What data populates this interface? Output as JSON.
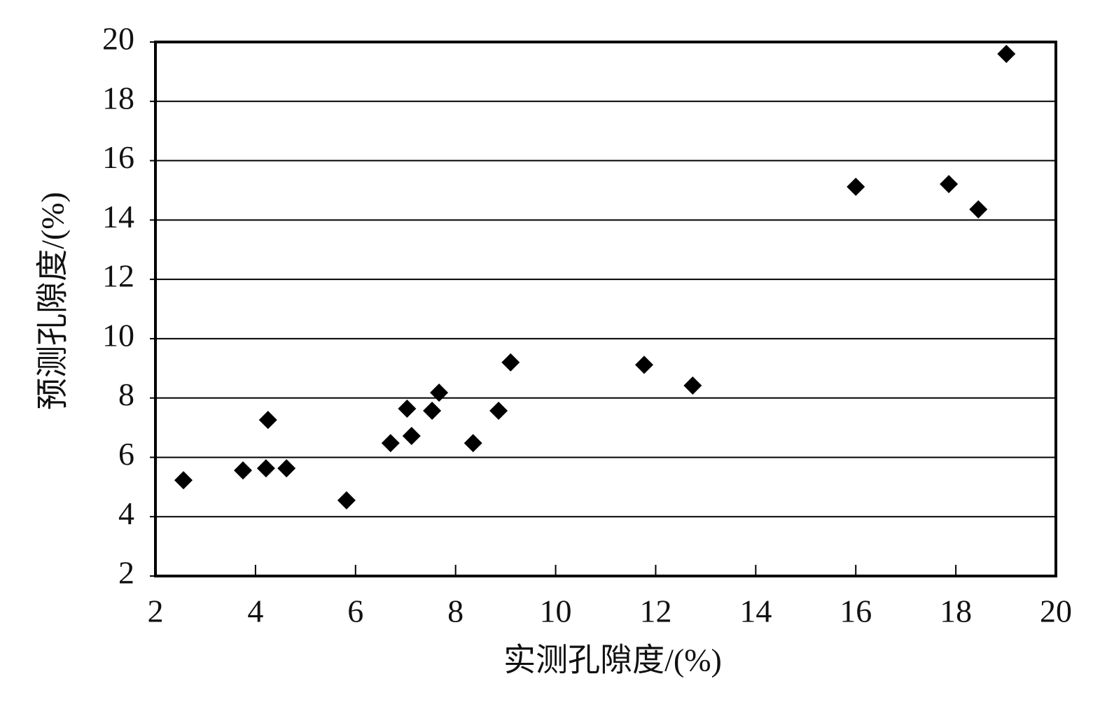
{
  "chart_data": {
    "type": "scatter",
    "x_label": "实测孔隙度/(%)",
    "y_label": "预测孔隙度/(%)",
    "xlim": [
      2,
      20
    ],
    "ylim": [
      2,
      20
    ],
    "xticks": [
      2,
      4,
      6,
      8,
      10,
      12,
      14,
      16,
      18,
      20
    ],
    "yticks": [
      2,
      4,
      6,
      8,
      10,
      12,
      14,
      16,
      18,
      20
    ],
    "grid": true,
    "color": "#000000",
    "x": [
      2.56,
      3.75,
      4.21,
      4.25,
      4.62,
      5.82,
      6.7,
      7.03,
      7.12,
      7.53,
      7.67,
      8.35,
      8.86,
      9.1,
      11.77,
      12.74,
      16.0,
      17.86,
      18.45,
      19.01
    ],
    "values": [
      5.23,
      5.56,
      5.63,
      7.26,
      5.63,
      4.55,
      6.48,
      7.64,
      6.72,
      7.57,
      8.18,
      6.48,
      7.57,
      9.2,
      9.12,
      8.42,
      15.12,
      15.21,
      14.36,
      19.6
    ]
  }
}
